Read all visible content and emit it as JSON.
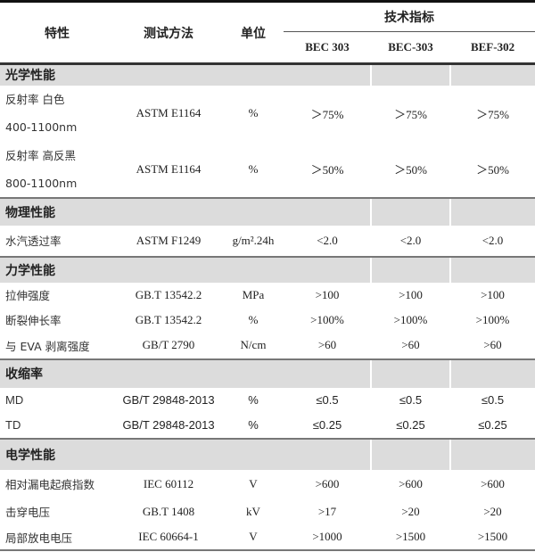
{
  "header": {
    "property": "特性",
    "method": "测试方法",
    "unit": "单位",
    "spec": "技术指标",
    "products": [
      "BEC 303",
      "BEC-303",
      "BEF-302"
    ]
  },
  "sections": [
    {
      "title": "光学性能",
      "rows": [
        {
          "name": [
            "反射率  白色",
            "400-1100nm"
          ],
          "method": "ASTM E1164",
          "unit": "%",
          "values": [
            "＞75%",
            "＞75%",
            "＞75%"
          ]
        },
        {
          "name": [
            "反射率  高反黑",
            "800-1100nm"
          ],
          "method": "ASTM E1164",
          "unit": "%",
          "values": [
            "＞50%",
            "＞50%",
            "＞50%"
          ]
        }
      ]
    },
    {
      "title": "物理性能",
      "rows": [
        {
          "name": [
            "水汽透过率"
          ],
          "method": "ASTM F1249",
          "unit": "g/m².24h",
          "values": [
            "<2.0",
            "<2.0",
            "<2.0"
          ]
        }
      ]
    },
    {
      "title": "力学性能",
      "rows": [
        {
          "name": [
            "拉伸强度"
          ],
          "method": "GB.T 13542.2",
          "unit": "MPa",
          "values": [
            ">100",
            ">100",
            ">100"
          ]
        },
        {
          "name": [
            "断裂伸长率"
          ],
          "method": "GB.T 13542.2",
          "unit": "%",
          "values": [
            ">100%",
            ">100%",
            ">100%"
          ]
        },
        {
          "name": [
            "与 EVA 剥离强度"
          ],
          "method": "GB/T 2790",
          "unit": "N/cm",
          "values": [
            ">60",
            ">60",
            ">60"
          ]
        }
      ]
    },
    {
      "title": "收缩率",
      "sans": true,
      "rows": [
        {
          "name": [
            "MD"
          ],
          "method": "GB/T 29848-2013",
          "unit": "%",
          "values": [
            "≤0.5",
            "≤0.5",
            "≤0.5"
          ]
        },
        {
          "name": [
            "TD"
          ],
          "method": "GB/T 29848-2013",
          "unit": "%",
          "values": [
            "≤0.25",
            "≤0.25",
            "≤0.25"
          ]
        }
      ]
    },
    {
      "title": "电学性能",
      "rows": [
        {
          "name": [
            "相对漏电起痕指数"
          ],
          "method": "IEC 60112",
          "unit": "V",
          "values": [
            ">600",
            ">600",
            ">600"
          ]
        },
        {
          "name": [
            "击穿电压"
          ],
          "method": "GB.T 1408",
          "unit": "kV",
          "values": [
            ">17",
            ">20",
            ">20"
          ]
        },
        {
          "name": [
            "局部放电电压"
          ],
          "method": "IEC 60664-1",
          "unit": "V",
          "values": [
            ">1000",
            ">1500",
            ">1500"
          ]
        }
      ]
    }
  ]
}
